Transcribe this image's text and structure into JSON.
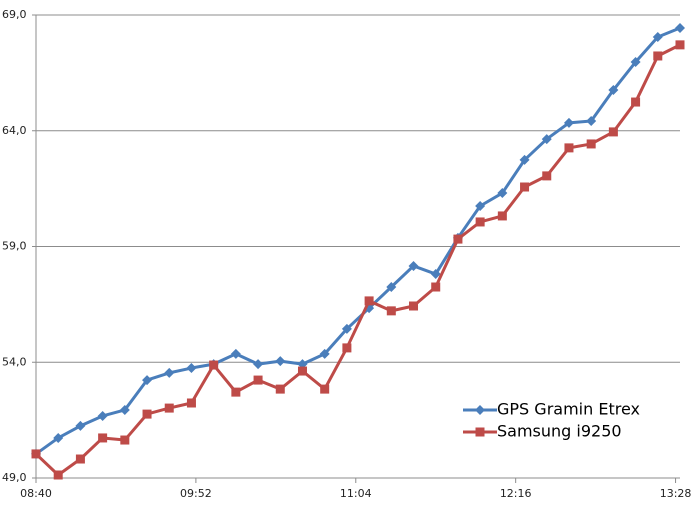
{
  "chart_data": {
    "type": "line",
    "x": [
      520,
      530,
      540,
      550,
      560,
      570,
      580,
      590,
      600,
      610,
      620,
      630,
      640,
      650,
      660,
      670,
      680,
      690,
      700,
      710,
      720,
      730,
      740,
      750,
      760,
      770,
      780,
      790,
      800,
      810
    ],
    "xlim": [
      520,
      810
    ],
    "xticks": [
      {
        "value": 520,
        "label": "08:40"
      },
      {
        "value": 592,
        "label": "09:52"
      },
      {
        "value": 664,
        "label": "11:04"
      },
      {
        "value": 736,
        "label": "12:16"
      },
      {
        "value": 808,
        "label": "13:28"
      }
    ],
    "ylim": [
      49,
      69
    ],
    "yticks": [
      {
        "value": 49,
        "label": "49,0"
      },
      {
        "value": 54,
        "label": "54,0"
      },
      {
        "value": 59,
        "label": "59,0"
      },
      {
        "value": 64,
        "label": "64,0"
      },
      {
        "value": 69,
        "label": "69,0"
      }
    ],
    "grid": true,
    "legend": "lower right",
    "series": [
      {
        "name": "GPS Gramin Etrex",
        "color": "#4a7ebb",
        "marker": "diamond",
        "values": [
          50.04,
          50.73,
          51.25,
          51.68,
          51.94,
          53.23,
          53.54,
          53.75,
          53.92,
          54.36,
          53.92,
          54.05,
          53.92,
          54.36,
          55.44,
          56.34,
          57.25,
          58.16,
          57.81,
          59.37,
          60.75,
          61.31,
          62.74,
          63.64,
          64.34,
          64.42,
          65.76,
          66.97,
          68.05,
          68.44
        ]
      },
      {
        "name": "Samsung i9250",
        "color": "#be4b48",
        "marker": "square",
        "values": [
          50.04,
          49.13,
          49.82,
          50.73,
          50.64,
          51.76,
          52.02,
          52.24,
          53.88,
          52.71,
          53.23,
          52.84,
          53.62,
          52.84,
          54.62,
          56.65,
          56.22,
          56.43,
          57.25,
          59.32,
          60.06,
          60.32,
          61.57,
          62.05,
          63.26,
          63.43,
          63.95,
          65.24,
          67.23,
          67.71
        ]
      }
    ]
  }
}
